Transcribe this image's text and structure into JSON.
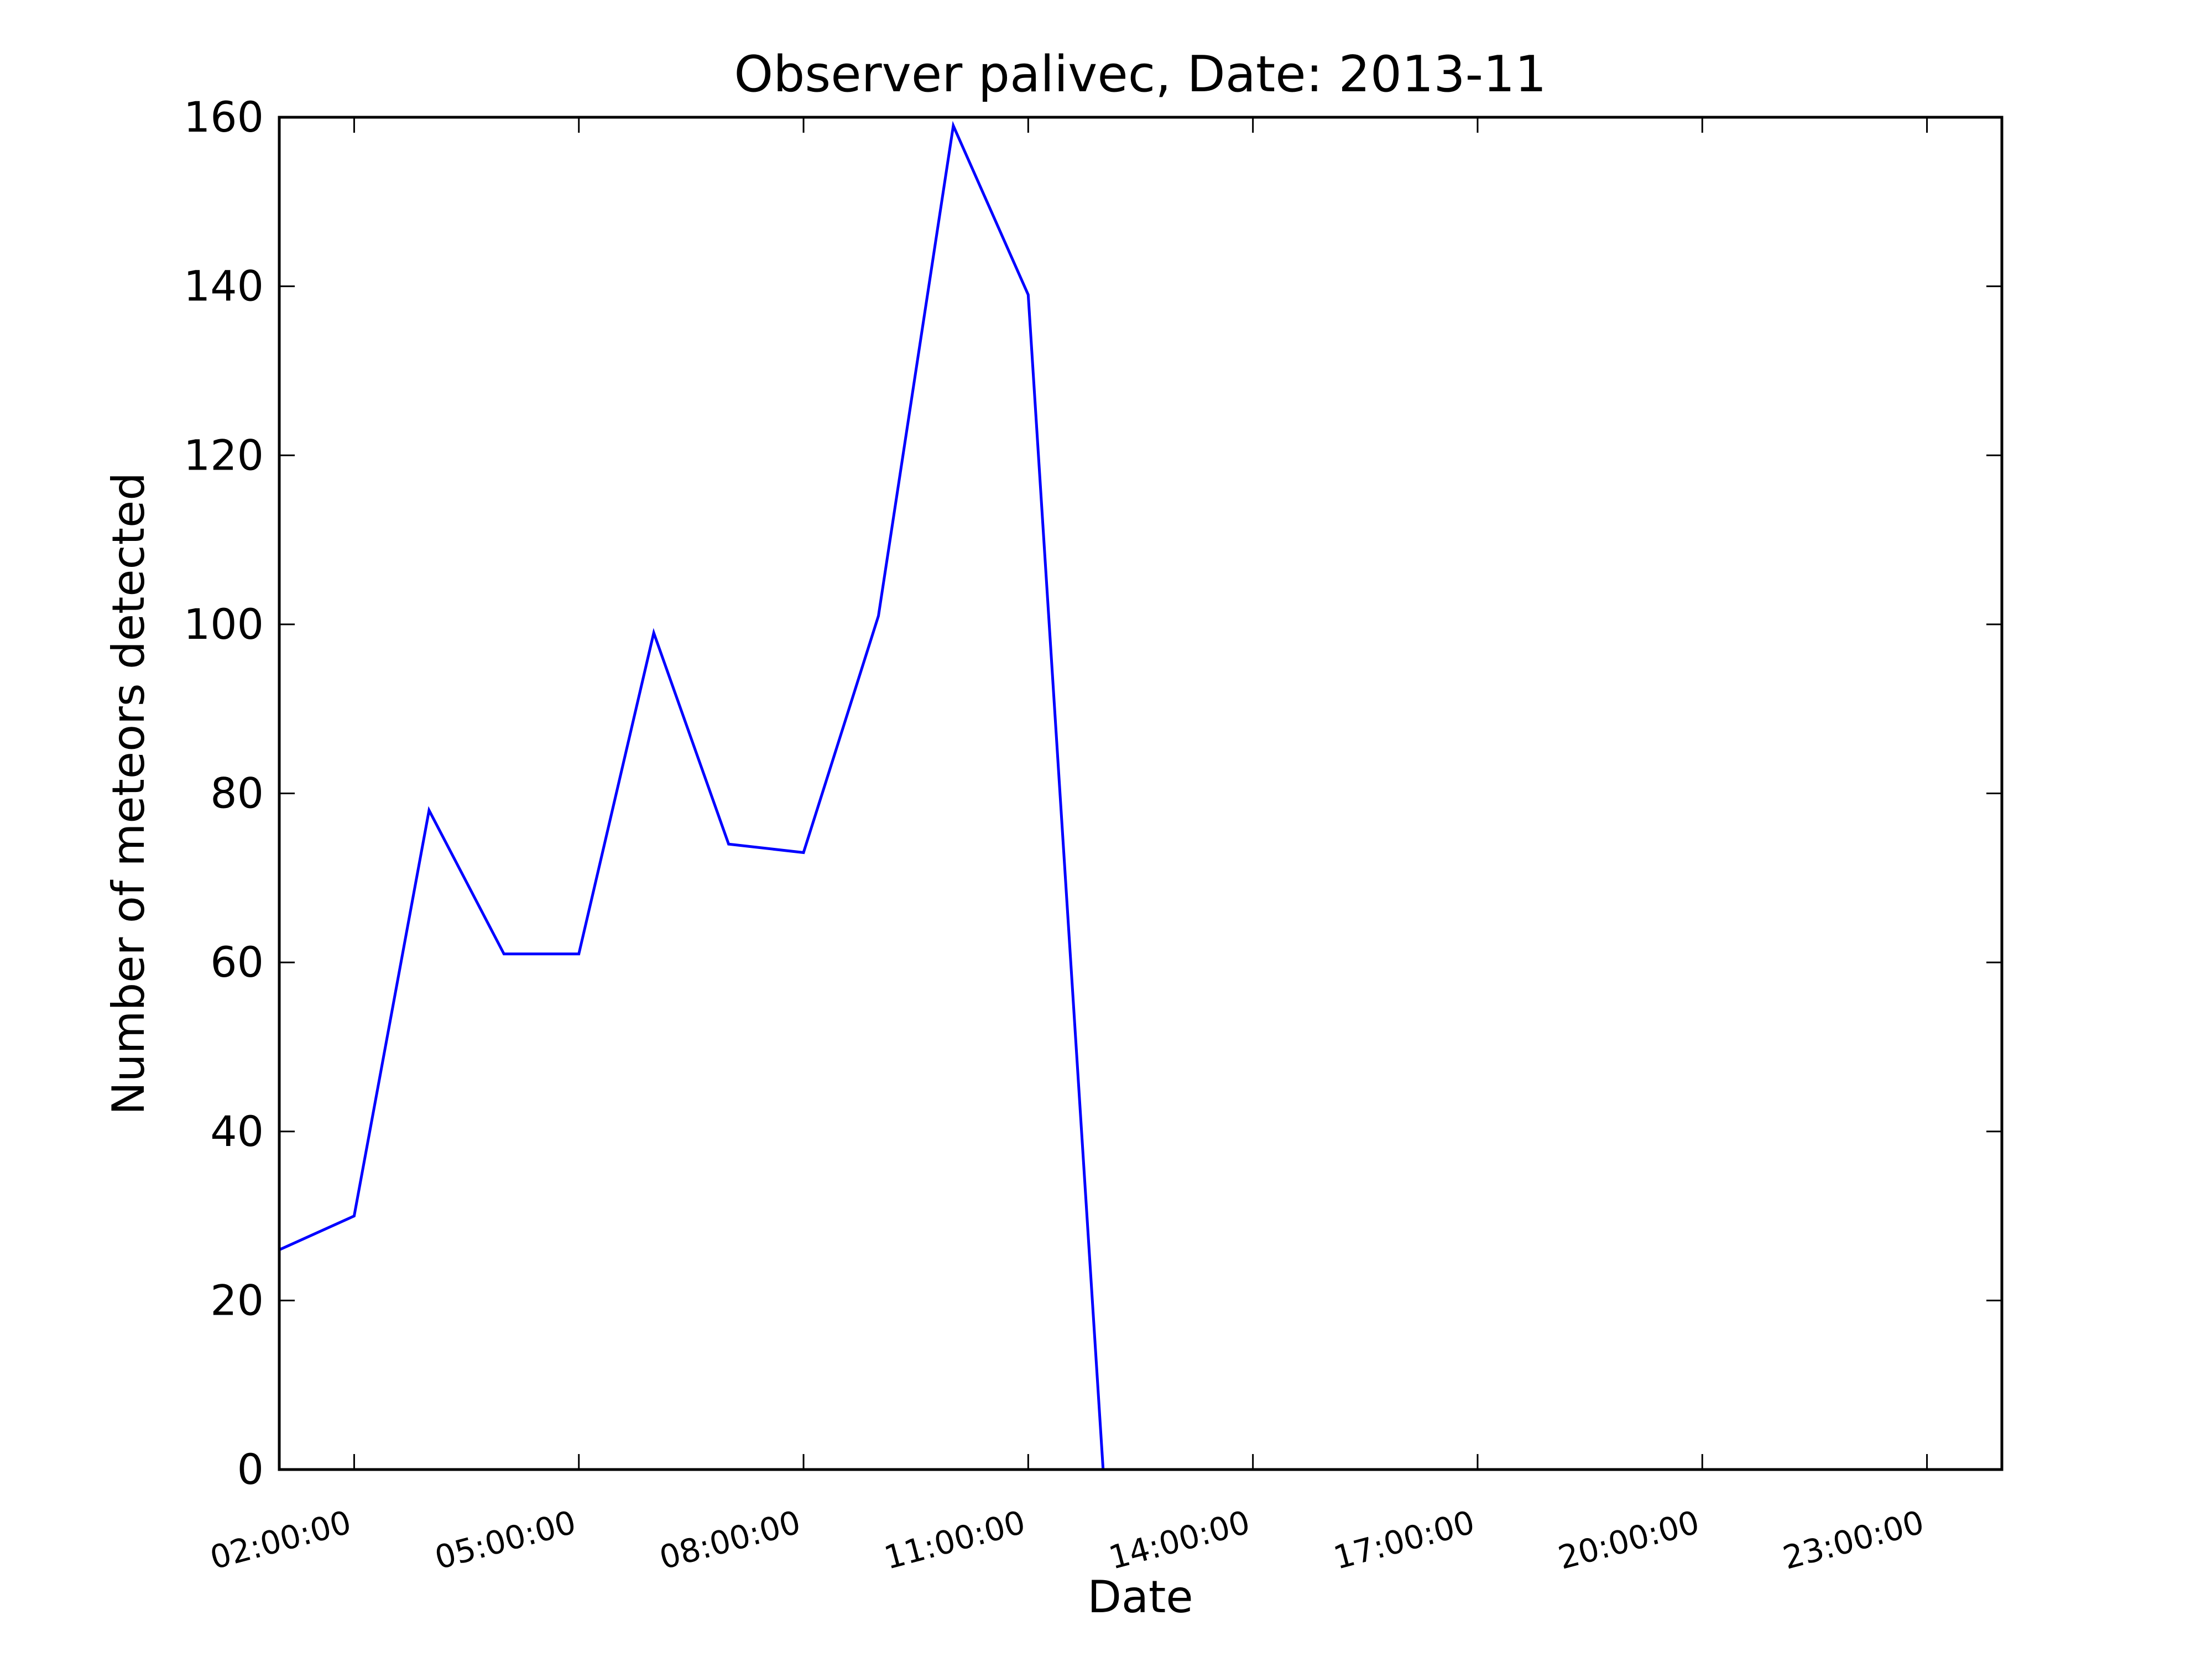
{
  "chart_data": {
    "type": "line",
    "title": "Observer palivec, Date: 2013-11",
    "xlabel": "Date",
    "ylabel": "Number of meteors detected",
    "xlim": [
      "01:00:00",
      "24:00:00"
    ],
    "ylim": [
      0,
      160
    ],
    "x_ticks": [
      "02:00:00",
      "05:00:00",
      "08:00:00",
      "11:00:00",
      "14:00:00",
      "17:00:00",
      "20:00:00",
      "23:00:00"
    ],
    "y_ticks": [
      0,
      20,
      40,
      60,
      80,
      100,
      120,
      140,
      160
    ],
    "grid": false,
    "series": [
      {
        "color": "#0000ff",
        "x": [
          "01:00:00",
          "02:00:00",
          "03:00:00",
          "04:00:00",
          "05:00:00",
          "06:00:00",
          "07:00:00",
          "08:00:00",
          "09:00:00",
          "10:00:00",
          "11:00:00",
          "12:00:00",
          "13:00:00",
          "14:00:00",
          "15:00:00",
          "16:00:00",
          "17:00:00",
          "18:00:00",
          "19:00:00",
          "20:00:00",
          "21:00:00",
          "22:00:00",
          "23:00:00",
          "24:00:00"
        ],
        "values": [
          26,
          30,
          78,
          61,
          61,
          99,
          74,
          73,
          101,
          159,
          139,
          0,
          0,
          0,
          0,
          0,
          0,
          0,
          0,
          0,
          0,
          0,
          0,
          0
        ]
      }
    ]
  }
}
